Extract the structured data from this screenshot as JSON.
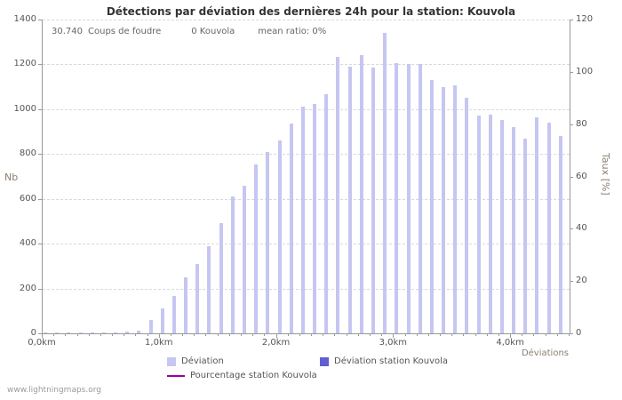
{
  "page": {
    "watermark": "www.lightningmaps.org"
  },
  "chart_data": {
    "type": "bar",
    "title": "Détections par déviation des dernières 24h pour la station: Kouvola",
    "stats": {
      "strikes_count": "30.740",
      "strikes_label": "Coups de foudre",
      "station_count": "0",
      "station_name": "Kouvola",
      "mean_ratio_label": "mean ratio: 0%"
    },
    "xlabel": "Déviations",
    "ylabel_left": "Nb",
    "ylabel_right": "Taux [%]",
    "x_tick_labels": [
      "0,0km",
      "1,0km",
      "2,0km",
      "3,0km",
      "4,0km"
    ],
    "x_tick_km": [
      0,
      1,
      2,
      3,
      4
    ],
    "xlim_km": [
      0,
      4.5
    ],
    "x_start_km": 0.0,
    "bar_step_km": 0.1,
    "ylim_left": [
      0,
      1400
    ],
    "yticks_left": [
      0,
      200,
      400,
      600,
      800,
      1000,
      1200,
      1400
    ],
    "ylim_right": [
      0,
      120
    ],
    "yticks_right": [
      0,
      20,
      40,
      60,
      80,
      100,
      120
    ],
    "grid": true,
    "legend_position": "bottom",
    "bar_color": "#c6c6f2",
    "station_bar_color": "#5f5fd3",
    "percentage_line_color": "#a000a0",
    "series": [
      {
        "name": "Déviation",
        "values": [
          3,
          2,
          2,
          3,
          3,
          4,
          5,
          6,
          10,
          60,
          110,
          165,
          250,
          310,
          390,
          490,
          610,
          660,
          755,
          810,
          860,
          935,
          1010,
          1025,
          1065,
          1235,
          1190,
          1240,
          1185,
          1340,
          1205,
          1200,
          1200,
          1130,
          1100,
          1105,
          1050,
          970,
          975,
          950,
          920,
          870,
          965,
          940,
          880
        ]
      },
      {
        "name": "Déviation station Kouvola",
        "constant_value": 0
      },
      {
        "name": "Pourcentage station Kouvola",
        "constant_value": 0
      }
    ],
    "legend": [
      {
        "label": "Déviation",
        "swatch": "box",
        "color": "#c6c6f2"
      },
      {
        "label": "Déviation station Kouvola",
        "swatch": "box",
        "color": "#5f5fd3"
      },
      {
        "label": "Pourcentage station Kouvola",
        "swatch": "line",
        "color": "#a000a0"
      }
    ]
  }
}
